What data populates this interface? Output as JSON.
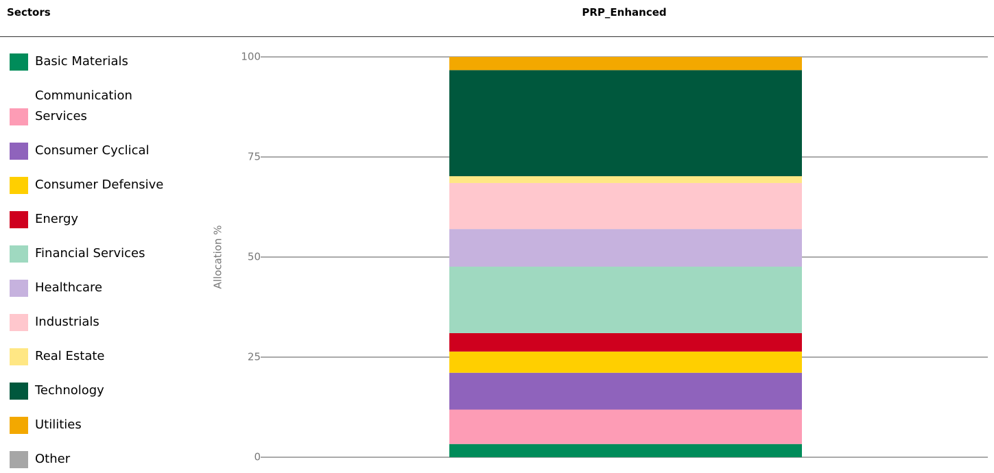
{
  "chart_data": {
    "type": "stacked_bar",
    "legend_title": "Sectors",
    "title": "PRP_Enhanced",
    "ylabel": "Allocation %",
    "ylim": [
      0,
      100
    ],
    "yticks": [
      0,
      25,
      50,
      75,
      100
    ],
    "grid": true,
    "series": [
      {
        "name": "Basic Materials",
        "color": "#008c5a",
        "values": [
          3.3
        ]
      },
      {
        "name": "Communication Services",
        "color": "#fd9cb5",
        "values": [
          8.6
        ]
      },
      {
        "name": "Consumer Cyclical",
        "color": "#8f63bc",
        "values": [
          9.2
        ]
      },
      {
        "name": "Consumer Defensive",
        "color": "#ffcf00",
        "values": [
          5.3
        ]
      },
      {
        "name": "Energy",
        "color": "#cf001e",
        "values": [
          4.6
        ]
      },
      {
        "name": "Financial Services",
        "color": "#9fd9c0",
        "values": [
          16.6
        ]
      },
      {
        "name": "Healthcare",
        "color": "#c6b2de",
        "values": [
          9.4
        ]
      },
      {
        "name": "Industrials",
        "color": "#ffc7cd",
        "values": [
          11.5
        ]
      },
      {
        "name": "Real Estate",
        "color": "#ffe784",
        "values": [
          1.7
        ]
      },
      {
        "name": "Technology",
        "color": "#00583d",
        "values": [
          26.5
        ]
      },
      {
        "name": "Utilities",
        "color": "#f3a800",
        "values": [
          3.3
        ]
      },
      {
        "name": "Other",
        "color": "#a6a6a6",
        "values": [
          0
        ]
      }
    ]
  }
}
